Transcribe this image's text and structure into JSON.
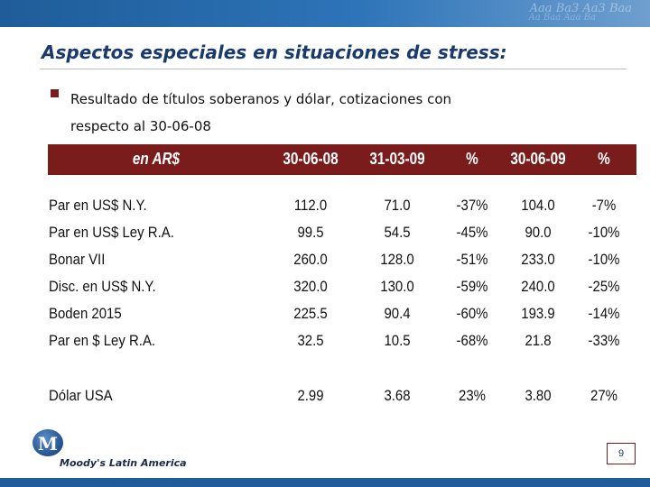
{
  "header": {
    "decor_line1": "Aaa  Ba3  Aa3  Baa",
    "decor_line2": "Aa  Baa  Aaa  Ba"
  },
  "slide": {
    "title": "Aspectos especiales en situaciones de stress:",
    "bullet_line1": "Resultado de títulos soberanos y dólar, cotizaciones con",
    "bullet_line2": "respecto al 30-06-08",
    "page_number": "9"
  },
  "table": {
    "columns": [
      "en AR$",
      "30-06-08",
      "31-03-09",
      "%",
      "30-06-09",
      "%"
    ],
    "rows": [
      [
        "Par en US$ N.Y.",
        "112.0",
        "71.0",
        "-37%",
        "104.0",
        "-7%"
      ],
      [
        "Par en US$ Ley R.A.",
        "99.5",
        "54.5",
        "-45%",
        "90.0",
        "-10%"
      ],
      [
        "Bonar VII",
        "260.0",
        "128.0",
        "-51%",
        "233.0",
        "-10%"
      ],
      [
        "Disc. en US$ N.Y.",
        "320.0",
        "130.0",
        "-59%",
        "240.0",
        "-25%"
      ],
      [
        "Boden 2015",
        "225.5",
        "90.4",
        "-60%",
        "193.9",
        "-14%"
      ],
      [
        "Par en $ Ley R.A.",
        "32.5",
        "10.5",
        "-68%",
        "21.8",
        "-33%"
      ],
      [
        "Dólar USA",
        "2.99",
        "3.68",
        "23%",
        "3.80",
        "27%"
      ]
    ]
  },
  "footer": {
    "logo_letter": "M",
    "logo_text": "Moody's Latin America"
  },
  "colors": {
    "header_fill": "#7a1c1c",
    "title": "#1a3a6e",
    "brand_blue": "#1f5c99"
  },
  "icons": {
    "bullet": "square-bullet-icon",
    "logo": "moodys-logo-icon"
  }
}
